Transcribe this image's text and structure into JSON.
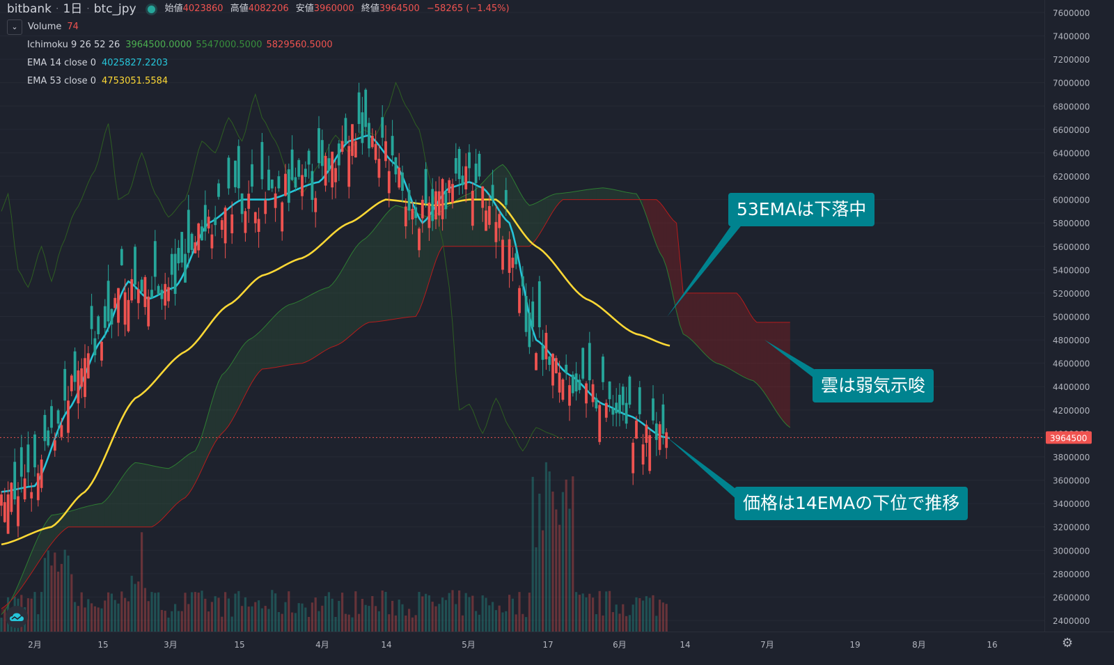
{
  "header": {
    "exchange": "bitbank",
    "interval": "1日",
    "symbol": "btc_jpy",
    "ohlc": [
      {
        "label": "始値",
        "value": "4023860"
      },
      {
        "label": "高値",
        "value": "4082206"
      },
      {
        "label": "安値",
        "value": "3960000"
      },
      {
        "label": "終値",
        "value": "3964500"
      },
      {
        "label": "",
        "value": "−58265 (−1.45%)"
      }
    ]
  },
  "indicators": {
    "volume": {
      "name": "Volume",
      "value": "74"
    },
    "ichimoku": {
      "name": "Ichimoku 9 26 52 26",
      "v1": "3964500.0000",
      "v2": "5547000.5000",
      "v3": "5829560.5000"
    },
    "ema14": {
      "name": "EMA 14 close 0",
      "value": "4025827.2203"
    },
    "ema53": {
      "name": "EMA 53 close 0",
      "value": "4753051.5584"
    }
  },
  "callouts": {
    "ema53": "53EMAは下落中",
    "cloud": "雲は弱気示唆",
    "price": "価格は14EMAの下位で推移"
  },
  "colors": {
    "background": "#1e222d",
    "up": "#26a69a",
    "down": "#ef5350",
    "ema14": "#26c6da",
    "ema53": "#fdd835",
    "span_a": "#2e7d32",
    "span_b": "#b71c1c",
    "callout": "#00838f"
  },
  "icons": {
    "logo": "cloud-logo-icon",
    "settings": "gear-icon",
    "collapse": "chevron-down-icon"
  },
  "chart_data": {
    "type": "candlestick",
    "y_axis": {
      "min": 2400000,
      "max": 7600000,
      "step": 200000
    },
    "y_ticks": [
      "7600000",
      "7400000",
      "7200000",
      "7000000",
      "6800000",
      "6600000",
      "6400000",
      "6200000",
      "6000000",
      "5800000",
      "5600000",
      "5400000",
      "5200000",
      "5000000",
      "4800000",
      "4600000",
      "4400000",
      "4200000",
      "4000000",
      "3800000",
      "3600000",
      "3400000",
      "3200000",
      "3000000",
      "2800000",
      "2600000",
      "2400000"
    ],
    "x_ticks": [
      "2月",
      "15",
      "3月",
      "15",
      "4月",
      "14",
      "5月",
      "17",
      "6月",
      "14",
      "7月",
      "19",
      "8月",
      "16"
    ],
    "last_price": "3964500",
    "ema14_anchors": [
      [
        0,
        3500000
      ],
      [
        10,
        3550000
      ],
      [
        20,
        4200000
      ],
      [
        30,
        4800000
      ],
      [
        38,
        5300000
      ],
      [
        44,
        5150000
      ],
      [
        52,
        5250000
      ],
      [
        62,
        5800000
      ],
      [
        72,
        6000000
      ],
      [
        80,
        6000000
      ],
      [
        95,
        6150000
      ],
      [
        104,
        6500000
      ],
      [
        110,
        6550000
      ],
      [
        118,
        6300000
      ],
      [
        126,
        5800000
      ],
      [
        134,
        6100000
      ],
      [
        140,
        6150000
      ],
      [
        144,
        6100000
      ],
      [
        152,
        5800000
      ],
      [
        160,
        4800000
      ],
      [
        170,
        4500000
      ],
      [
        180,
        4250000
      ],
      [
        188,
        4150000
      ],
      [
        198,
        3970000
      ],
      [
        200,
        3960000
      ]
    ],
    "ema53_anchors": [
      [
        0,
        3050000
      ],
      [
        15,
        3200000
      ],
      [
        25,
        3500000
      ],
      [
        40,
        4300000
      ],
      [
        55,
        4700000
      ],
      [
        68,
        5100000
      ],
      [
        78,
        5350000
      ],
      [
        90,
        5500000
      ],
      [
        104,
        5800000
      ],
      [
        115,
        6000000
      ],
      [
        130,
        5950000
      ],
      [
        140,
        6000000
      ],
      [
        148,
        6000000
      ],
      [
        160,
        5600000
      ],
      [
        175,
        5150000
      ],
      [
        190,
        4850000
      ],
      [
        200,
        4750000
      ]
    ],
    "span_a_anchors": [
      [
        0,
        2450000
      ],
      [
        15,
        3300000
      ],
      [
        30,
        3400000
      ],
      [
        40,
        3750000
      ],
      [
        50,
        3700000
      ],
      [
        58,
        3850000
      ],
      [
        66,
        4500000
      ],
      [
        74,
        4800000
      ],
      [
        86,
        5100000
      ],
      [
        98,
        5250000
      ],
      [
        108,
        5650000
      ],
      [
        118,
        5950000
      ],
      [
        128,
        5850000
      ],
      [
        140,
        6050000
      ],
      [
        150,
        6300000
      ],
      [
        158,
        5950000
      ],
      [
        166,
        6050000
      ],
      [
        180,
        6100000
      ],
      [
        190,
        6050000
      ],
      [
        198,
        5500000
      ],
      [
        204,
        4850000
      ],
      [
        214,
        4600000
      ],
      [
        225,
        4450000
      ],
      [
        236,
        4050000
      ]
    ],
    "span_b_anchors": [
      [
        0,
        2500000
      ],
      [
        20,
        3200000
      ],
      [
        35,
        3200000
      ],
      [
        45,
        3200000
      ],
      [
        55,
        3450000
      ],
      [
        66,
        4000000
      ],
      [
        78,
        4550000
      ],
      [
        90,
        4600000
      ],
      [
        100,
        4750000
      ],
      [
        110,
        4950000
      ],
      [
        124,
        5000000
      ],
      [
        132,
        5600000
      ],
      [
        158,
        5600000
      ],
      [
        168,
        6000000
      ],
      [
        196,
        6000000
      ],
      [
        202,
        5800000
      ],
      [
        204,
        5200000
      ],
      [
        220,
        5200000
      ],
      [
        226,
        4950000
      ],
      [
        236,
        4950000
      ]
    ],
    "chikou_anchors": [
      [
        0,
        5900000
      ],
      [
        2,
        6050000
      ],
      [
        5,
        5400000
      ],
      [
        8,
        5250000
      ],
      [
        12,
        5600000
      ],
      [
        15,
        5300000
      ],
      [
        18,
        5600000
      ],
      [
        22,
        5900000
      ],
      [
        28,
        6250000
      ],
      [
        32,
        6650000
      ],
      [
        35,
        6000000
      ],
      [
        38,
        6050000
      ],
      [
        42,
        6400000
      ],
      [
        46,
        6050000
      ],
      [
        50,
        5850000
      ],
      [
        55,
        6000000
      ],
      [
        60,
        6500000
      ],
      [
        64,
        6400000
      ],
      [
        68,
        6700000
      ],
      [
        72,
        6500000
      ],
      [
        76,
        6900000
      ],
      [
        78,
        6700000
      ],
      [
        82,
        6500000
      ],
      [
        86,
        6200000
      ],
      [
        90,
        6050000
      ],
      [
        95,
        6300000
      ],
      [
        100,
        6550000
      ],
      [
        104,
        6400000
      ],
      [
        108,
        6600000
      ],
      [
        112,
        6550000
      ],
      [
        116,
        6800000
      ],
      [
        118,
        7000000
      ],
      [
        121,
        6800000
      ],
      [
        125,
        6600000
      ],
      [
        128,
        6200000
      ],
      [
        132,
        5650000
      ],
      [
        134,
        5250000
      ],
      [
        137,
        4200000
      ],
      [
        140,
        4250000
      ],
      [
        144,
        4000000
      ],
      [
        148,
        4300000
      ],
      [
        152,
        4050000
      ],
      [
        156,
        3850000
      ],
      [
        160,
        4050000
      ],
      [
        164,
        4000000
      ],
      [
        168,
        3950000
      ]
    ],
    "volume_hint": "bars in bottom pane, relative heights, peaks at late January / mid February / mid May"
  }
}
